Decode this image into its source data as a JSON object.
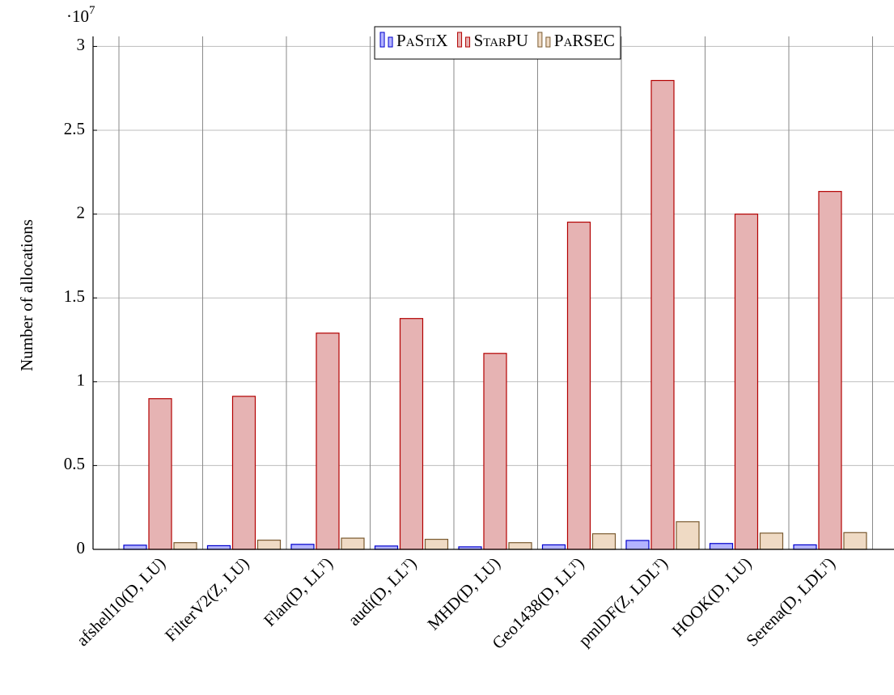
{
  "chart_data": {
    "type": "bar",
    "y_label": "Number of allocations",
    "y_multiplier_base": "·10",
    "y_multiplier_exp": "7",
    "categories": [
      "afshell10(D, LU)",
      "FilterV2(Z, LU)",
      "Flan(D, LLᵀ)",
      "audi(D, LLᵀ)",
      "MHD(D, LU)",
      "Geo1438(D, LLᵀ)",
      "pmlDF(Z, LDLᵀ)",
      "HOOK(D, LU)",
      "Serena(D, LDLᵀ)"
    ],
    "series": [
      {
        "name": "PaStiX",
        "color": "#b3b3ff",
        "stroke": "#0000cc",
        "values": [
          0.025,
          0.022,
          0.03,
          0.02,
          0.015,
          0.027,
          0.053,
          0.035,
          0.027
        ]
      },
      {
        "name": "StarPU",
        "color": "#e6b3b3",
        "stroke": "#b30000",
        "values": [
          0.899,
          0.913,
          1.29,
          1.377,
          1.169,
          1.952,
          2.797,
          2.0,
          2.135
        ]
      },
      {
        "name": "PaRSEC",
        "color": "#efdac4",
        "stroke": "#7a5a30",
        "values": [
          0.04,
          0.055,
          0.067,
          0.06,
          0.04,
          0.093,
          0.165,
          0.097,
          0.1
        ]
      }
    ],
    "ylim": [
      0,
      3.06
    ],
    "yticks": [
      0,
      0.5,
      1,
      1.5,
      2,
      2.5,
      3
    ],
    "grid": true,
    "legend": "top"
  }
}
